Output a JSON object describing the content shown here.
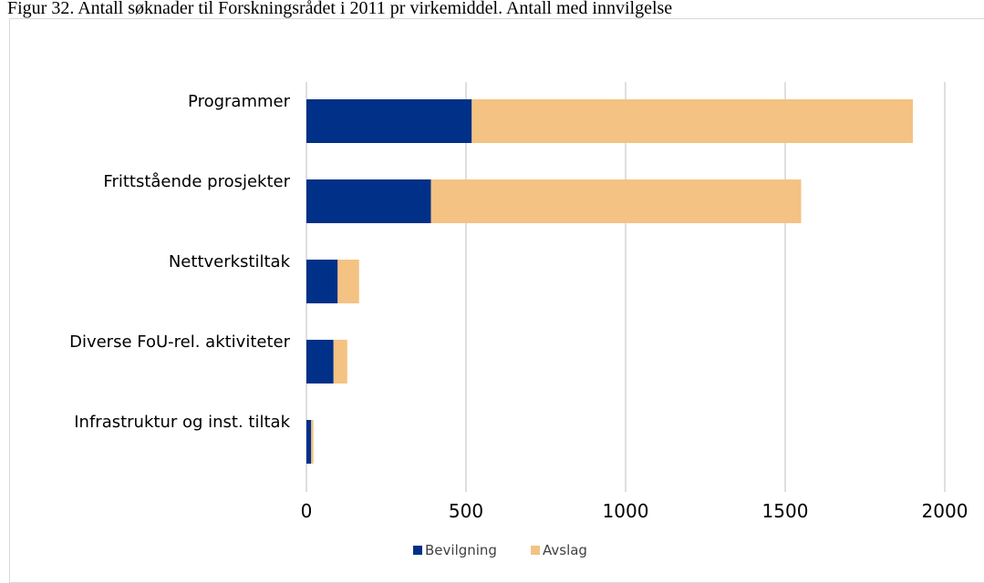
{
  "caption": "Figur 32. Antall søknader til Forskningsrådet i 2011 pr virkemiddel. Antall med innvilgelse",
  "colors": {
    "Bevilgning": "#003087",
    "Avslag": "#f4c283",
    "grid": "#bfbfbf"
  },
  "chart_data": {
    "type": "bar",
    "orientation": "horizontal",
    "stacked": true,
    "categories": [
      "Programmer",
      "Frittstående prosjekter",
      "Nettverkstiltak",
      "Diverse FoU-rel.  aktiviteter",
      "Infrastruktur og inst. tiltak"
    ],
    "series": [
      {
        "name": "Bevilgning",
        "values": [
          518,
          390,
          98,
          85,
          15
        ]
      },
      {
        "name": "Avslag",
        "values": [
          1382,
          1160,
          67,
          43,
          7
        ]
      }
    ],
    "xlim": [
      0,
      2000
    ],
    "xticks": [
      0,
      500,
      1000,
      1500,
      2000
    ],
    "grid": true,
    "legend": "bottom"
  }
}
